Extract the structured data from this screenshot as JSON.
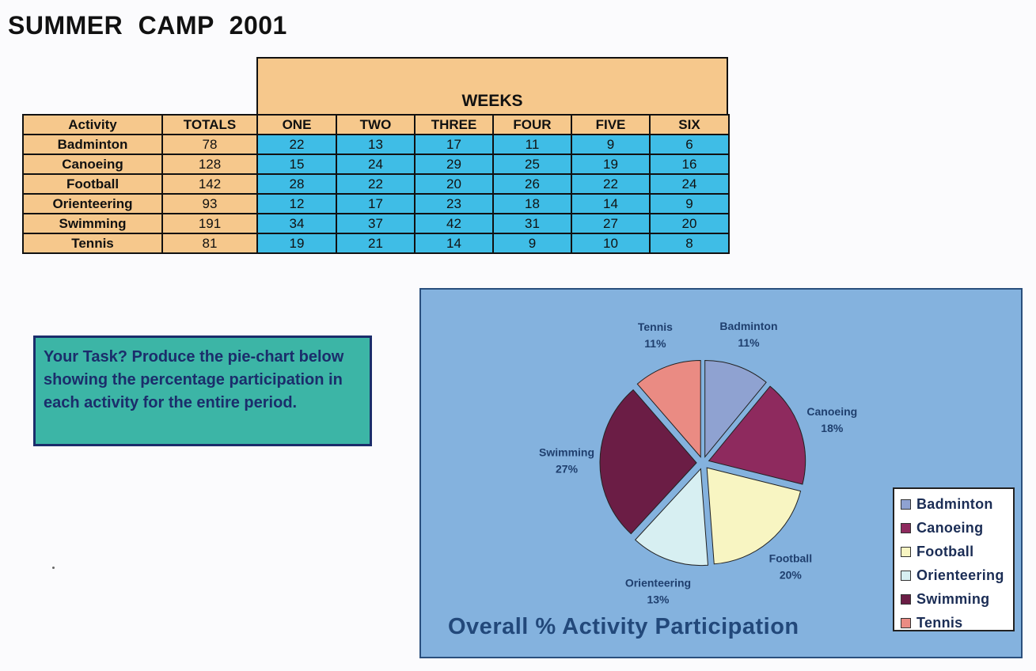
{
  "page": {
    "title": "SUMMER CAMP 2001"
  },
  "table": {
    "weeks_label": "WEEKS",
    "headers": [
      "Activity",
      "TOTALS",
      "ONE",
      "TWO",
      "THREE",
      "FOUR",
      "FIVE",
      "SIX"
    ],
    "rows": [
      {
        "activity": "Badminton",
        "total": "78",
        "weeks": [
          "22",
          "13",
          "17",
          "11",
          "9",
          "6"
        ]
      },
      {
        "activity": "Canoeing",
        "total": "128",
        "weeks": [
          "15",
          "24",
          "29",
          "25",
          "19",
          "16"
        ]
      },
      {
        "activity": "Football",
        "total": "142",
        "weeks": [
          "28",
          "22",
          "20",
          "26",
          "22",
          "24"
        ]
      },
      {
        "activity": "Orienteering",
        "total": "93",
        "weeks": [
          "12",
          "17",
          "23",
          "18",
          "14",
          "9"
        ]
      },
      {
        "activity": "Swimming",
        "total": "191",
        "weeks": [
          "34",
          "37",
          "42",
          "31",
          "27",
          "20"
        ]
      },
      {
        "activity": "Tennis",
        "total": "81",
        "weeks": [
          "19",
          "21",
          "14",
          "9",
          "10",
          "8"
        ]
      }
    ],
    "colors": {
      "header": "#f6c88c",
      "weeks": "#3fbde6"
    }
  },
  "task": {
    "text": "Your Task? Produce the pie-chart below showing the percentage participation in each activity for the entire period."
  },
  "chart_data": {
    "type": "pie",
    "title": "Overall % Activity Participation",
    "categories": [
      "Badminton",
      "Canoeing",
      "Football",
      "Orienteering",
      "Swimming",
      "Tennis"
    ],
    "values": [
      78,
      128,
      142,
      93,
      191,
      81
    ],
    "percent_labels": [
      "11%",
      "18%",
      "20%",
      "13%",
      "27%",
      "11%"
    ],
    "colors": [
      "#8fa2d1",
      "#8e2a5e",
      "#f8f5c2",
      "#d7eff2",
      "#6b1d45",
      "#ea8b83"
    ],
    "legend_position": "right",
    "exploded": true
  }
}
